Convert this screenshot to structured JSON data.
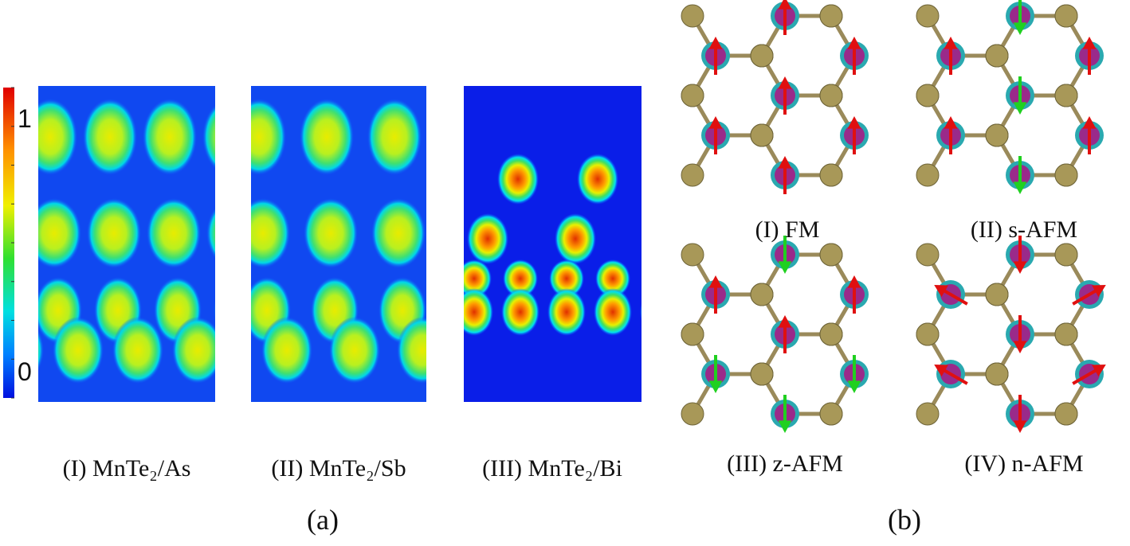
{
  "colorbar": {
    "top_label": "1",
    "bottom_label": "0"
  },
  "panel_a": {
    "label": "(a)",
    "maps": [
      "(I) MnTe₂/As",
      "(II) MnTe₂/Sb",
      "(III) MnTe₂/Bi"
    ]
  },
  "panel_b": {
    "label": "(b)",
    "configs": [
      "(I) FM",
      "(II) s-AFM",
      "(III) z-AFM",
      "(IV) n-AFM"
    ]
  }
}
